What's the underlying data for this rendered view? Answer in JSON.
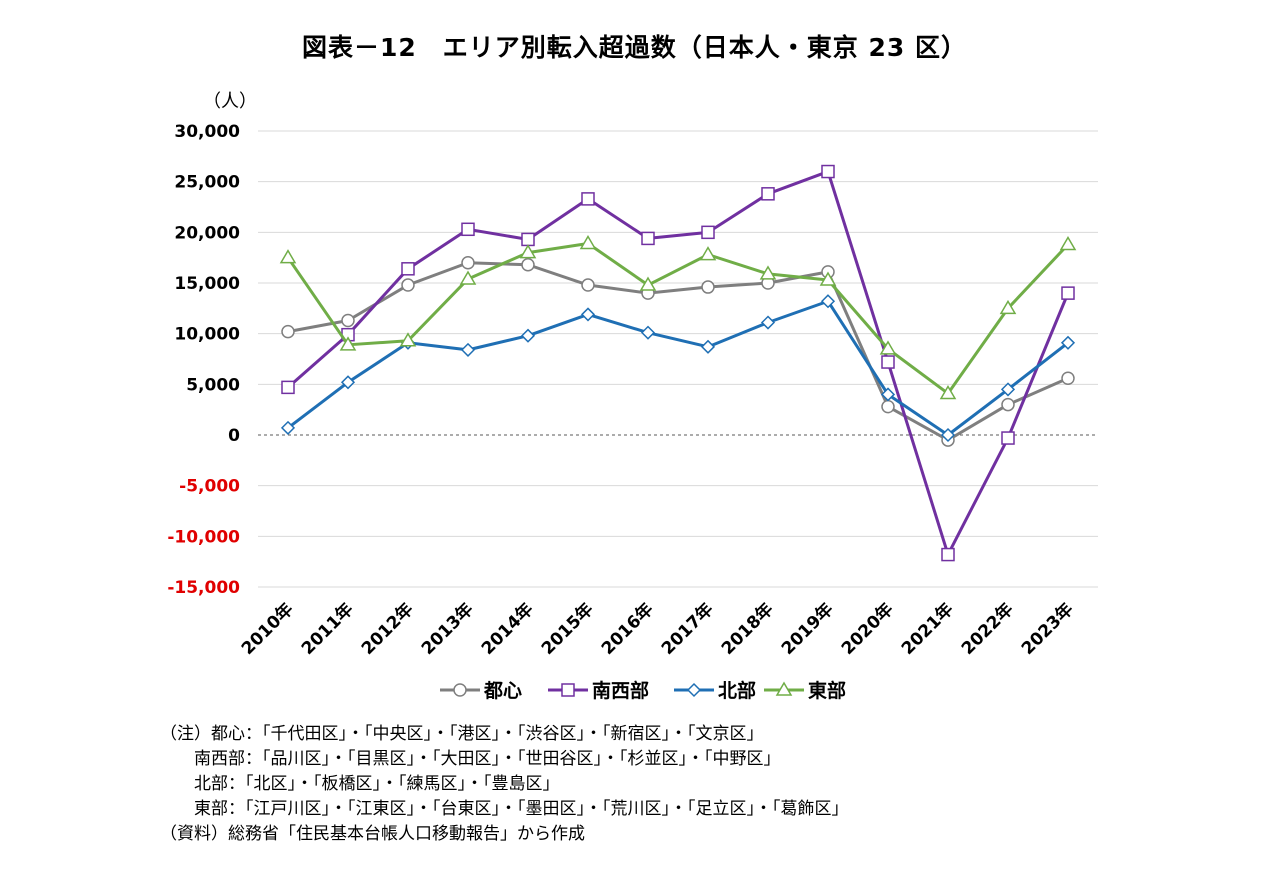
{
  "title": "図表－12　エリア別転入超過数（日本人・東京 23 区）",
  "y_unit": "（人）",
  "chart_data": {
    "type": "line",
    "categories": [
      "2010年",
      "2011年",
      "2012年",
      "2013年",
      "2014年",
      "2015年",
      "2016年",
      "2017年",
      "2018年",
      "2019年",
      "2020年",
      "2021年",
      "2022年",
      "2023年"
    ],
    "ylim": [
      -15000,
      30000
    ],
    "yticks": [
      30000,
      25000,
      20000,
      15000,
      10000,
      5000,
      0,
      -5000,
      -10000,
      -15000
    ],
    "ytick_labels": [
      "30,000",
      "25,000",
      "20,000",
      "15,000",
      "10,000",
      "5,000",
      "0",
      "-5,000",
      "-10,000",
      "-15,000"
    ],
    "negative_tick_color": "#e00000",
    "grid": true,
    "legend_position": "bottom",
    "series": [
      {
        "name": "都心",
        "color": "#7f7f7f",
        "marker": "circle",
        "values": [
          10200,
          11300,
          14800,
          17000,
          16800,
          14800,
          14000,
          14600,
          15000,
          16100,
          2800,
          -500,
          3000,
          5600
        ]
      },
      {
        "name": "南西部",
        "color": "#7030a0",
        "marker": "square",
        "values": [
          4700,
          9900,
          16400,
          20300,
          19300,
          23300,
          19400,
          20000,
          23800,
          26000,
          7200,
          -11800,
          -300,
          14000
        ]
      },
      {
        "name": "北部",
        "color": "#1f6fb4",
        "marker": "diamond",
        "values": [
          700,
          5200,
          9100,
          8400,
          9800,
          11900,
          10100,
          8700,
          11100,
          13200,
          4000,
          0,
          4500,
          9100
        ]
      },
      {
        "name": "東部",
        "color": "#70ad47",
        "marker": "triangle",
        "values": [
          17500,
          8900,
          9300,
          15400,
          18000,
          18900,
          14800,
          17800,
          15900,
          15300,
          8500,
          4100,
          12500,
          18800
        ]
      }
    ]
  },
  "notes": [
    "（注）都心：「千代田区」・「中央区」・「港区」・「渋谷区」・「新宿区」・「文京区」",
    "　　南西部：「品川区」・「目黒区」・「大田区」・「世田谷区」・「杉並区」・「中野区」",
    "　　北部：「北区」・「板橋区」・「練馬区」・「豊島区」",
    "　　東部：「江戸川区」・「江東区」・「台東区」・「墨田区」・「荒川区」・「足立区」・「葛飾区」",
    "（資料）総務省「住民基本台帳人口移動報告」から作成"
  ]
}
